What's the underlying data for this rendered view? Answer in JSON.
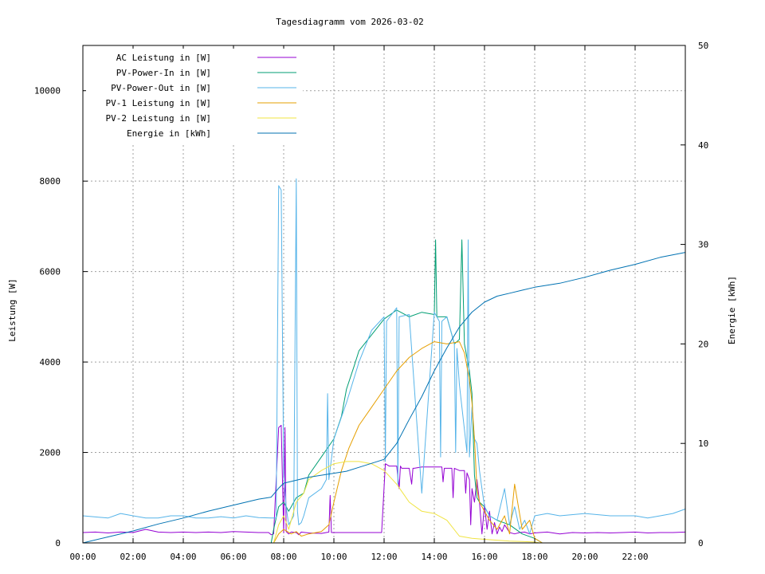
{
  "chart_data": {
    "type": "line",
    "title": "Tagesdiagramm vom 2026-03-02",
    "ylabel": "Leistung [W]",
    "y2label": "Energie [kWh]",
    "xlim": [
      0,
      24
    ],
    "ylim": [
      0,
      11000
    ],
    "y2lim": [
      0,
      50
    ],
    "grid": true,
    "legend_position": "top-left",
    "x_ticks": [
      {
        "v": 0,
        "label": "00:00"
      },
      {
        "v": 2,
        "label": "02:00"
      },
      {
        "v": 4,
        "label": "04:00"
      },
      {
        "v": 6,
        "label": "06:00"
      },
      {
        "v": 8,
        "label": "08:00"
      },
      {
        "v": 10,
        "label": "10:00"
      },
      {
        "v": 12,
        "label": "12:00"
      },
      {
        "v": 14,
        "label": "14:00"
      },
      {
        "v": 16,
        "label": "16:00"
      },
      {
        "v": 18,
        "label": "18:00"
      },
      {
        "v": 20,
        "label": "20:00"
      },
      {
        "v": 22,
        "label": "22:00"
      }
    ],
    "y_ticks": [
      {
        "v": 0,
        "label": "0"
      },
      {
        "v": 2000,
        "label": "2000"
      },
      {
        "v": 4000,
        "label": "4000"
      },
      {
        "v": 6000,
        "label": "6000"
      },
      {
        "v": 8000,
        "label": "8000"
      },
      {
        "v": 10000,
        "label": "10000"
      }
    ],
    "y2_ticks": [
      {
        "v": 0,
        "label": "0"
      },
      {
        "v": 10,
        "label": "10"
      },
      {
        "v": 20,
        "label": "20"
      },
      {
        "v": 30,
        "label": "30"
      },
      {
        "v": 40,
        "label": "40"
      },
      {
        "v": 50,
        "label": "50"
      }
    ],
    "series": [
      {
        "name": "AC Leistung in [W]",
        "color": "#9400d3",
        "axis": "y",
        "x": [
          0,
          0.5,
          1,
          1.5,
          2,
          2.5,
          3,
          3.5,
          4,
          4.5,
          5,
          5.5,
          6,
          6.5,
          7,
          7.4,
          7.5,
          7.6,
          7.8,
          7.9,
          8.0,
          8.05,
          8.1,
          8.2,
          8.3,
          8.5,
          8.6,
          8.7,
          9,
          9.5,
          9.8,
          9.85,
          9.9,
          10,
          11,
          11.9,
          12.05,
          12.2,
          12.5,
          12.6,
          12.65,
          12.7,
          13,
          13.1,
          13.15,
          13.2,
          13.5,
          14,
          14.3,
          14.35,
          14.4,
          14.6,
          14.7,
          14.75,
          14.8,
          15,
          15.2,
          15.25,
          15.3,
          15.4,
          15.45,
          15.5,
          15.6,
          15.7,
          15.8,
          15.9,
          16,
          16.1,
          16.2,
          16.3,
          16.4,
          16.5,
          16.6,
          16.7,
          16.8,
          17,
          17.2,
          17.4,
          17.6,
          17.8,
          18,
          18.2,
          18.5,
          19,
          19.5,
          20,
          20.5,
          21,
          21.5,
          22,
          22.5,
          23,
          23.5,
          24
        ],
        "y": [
          230,
          240,
          220,
          240,
          230,
          300,
          240,
          230,
          240,
          230,
          240,
          230,
          250,
          240,
          230,
          230,
          180,
          200,
          2550,
          2600,
          220,
          2550,
          250,
          200,
          240,
          230,
          180,
          240,
          220,
          210,
          240,
          1050,
          230,
          230,
          230,
          230,
          1750,
          1700,
          1700,
          1200,
          1700,
          1650,
          1650,
          1300,
          1650,
          1650,
          1680,
          1680,
          1680,
          1350,
          1650,
          1650,
          1650,
          1000,
          1650,
          1600,
          1600,
          1100,
          1550,
          1400,
          400,
          1200,
          900,
          1400,
          900,
          200,
          850,
          300,
          700,
          200,
          450,
          200,
          350,
          250,
          400,
          230,
          200,
          230,
          240,
          200,
          220,
          230,
          240,
          200,
          230,
          220,
          230,
          220,
          230,
          240,
          220,
          230,
          230,
          240
        ]
      },
      {
        "name": "PV-Power-In in [W]",
        "color": "#009e73",
        "axis": "y",
        "x": [
          0,
          7.5,
          7.6,
          7.8,
          8.0,
          8.2,
          8.5,
          8.8,
          9.0,
          9.5,
          10.0,
          10.3,
          10.5,
          10.8,
          11.0,
          11.5,
          12.0,
          12.5,
          13.0,
          13.5,
          14.0,
          14.05,
          14.1,
          14.5,
          14.8,
          15.0,
          15.1,
          15.2,
          15.4,
          15.5,
          15.6,
          15.7,
          15.8,
          16.0,
          16.2,
          16.5,
          17.0,
          17.5,
          18.0,
          18.3,
          24
        ],
        "y": [
          0,
          0,
          300,
          800,
          900,
          700,
          1000,
          1100,
          1500,
          1900,
          2300,
          2800,
          3400,
          3900,
          4250,
          4600,
          4950,
          5150,
          5000,
          5100,
          5050,
          6700,
          5000,
          5000,
          4400,
          4500,
          6700,
          4400,
          3800,
          3300,
          1500,
          1000,
          900,
          800,
          600,
          500,
          400,
          200,
          100,
          0,
          0
        ]
      },
      {
        "name": "PV-Power-Out in [W]",
        "color": "#56b4e9",
        "axis": "y",
        "x": [
          0,
          1,
          1.5,
          2,
          2.5,
          3,
          3.5,
          4,
          4.5,
          5,
          5.5,
          6,
          6.5,
          7,
          7.5,
          7.7,
          7.8,
          7.9,
          8.0,
          8.1,
          8.2,
          8.3,
          8.4,
          8.5,
          8.55,
          8.6,
          8.7,
          8.8,
          9,
          9.5,
          9.7,
          9.75,
          9.8,
          10.0,
          10.5,
          11.0,
          11.5,
          12.0,
          12.05,
          12.1,
          12.5,
          12.55,
          12.6,
          13.0,
          13.5,
          14.0,
          14.2,
          14.25,
          14.3,
          14.5,
          14.8,
          14.85,
          14.9,
          15.0,
          15.3,
          15.35,
          15.4,
          15.5,
          15.6,
          15.7,
          15.8,
          15.9,
          16.0,
          16.2,
          16.5,
          16.8,
          17.0,
          17.2,
          17.4,
          17.6,
          17.8,
          18.0,
          18.5,
          19,
          20,
          21,
          22,
          22.5,
          23,
          23.5,
          24
        ],
        "y": [
          600,
          550,
          650,
          600,
          550,
          550,
          600,
          600,
          550,
          550,
          580,
          550,
          600,
          560,
          550,
          550,
          7900,
          7800,
          1500,
          800,
          400,
          500,
          600,
          8050,
          700,
          400,
          450,
          600,
          1000,
          1200,
          1400,
          3300,
          1400,
          2300,
          3100,
          4000,
          4700,
          5000,
          1800,
          4900,
          5200,
          1300,
          5000,
          5050,
          1100,
          5100,
          4900,
          1900,
          4900,
          5000,
          4400,
          2000,
          4300,
          3500,
          2000,
          6700,
          1900,
          3000,
          2300,
          2200,
          1600,
          1200,
          800,
          600,
          500,
          1200,
          400,
          800,
          300,
          500,
          200,
          600,
          650,
          600,
          650,
          600,
          600,
          550,
          600,
          650,
          750
        ]
      },
      {
        "name": "PV-1 Leistung in [W]",
        "color": "#e69f00",
        "axis": "y",
        "x": [
          0,
          7.6,
          7.8,
          8.0,
          8.3,
          8.5,
          8.7,
          9.0,
          9.5,
          9.8,
          10.0,
          10.3,
          10.6,
          11.0,
          11.5,
          12.0,
          12.5,
          13.0,
          13.5,
          14.0,
          14.5,
          15.0,
          15.2,
          15.4,
          15.5,
          15.6,
          15.7,
          15.8,
          16.0,
          16.2,
          16.5,
          16.8,
          17.0,
          17.2,
          17.5,
          17.8,
          18.0,
          18.3,
          24
        ],
        "y": [
          0,
          0,
          200,
          300,
          200,
          250,
          150,
          200,
          250,
          400,
          900,
          1600,
          2100,
          2600,
          3000,
          3400,
          3800,
          4100,
          4300,
          4450,
          4400,
          4450,
          4200,
          3600,
          3100,
          2300,
          1200,
          900,
          700,
          500,
          300,
          600,
          200,
          1300,
          300,
          500,
          100,
          0,
          0
        ]
      },
      {
        "name": "PV-2 Leistung in [W]",
        "color": "#f0e442",
        "axis": "y",
        "x": [
          0,
          7.6,
          7.8,
          8.0,
          8.2,
          8.5,
          8.8,
          9.0,
          9.5,
          10.0,
          10.5,
          11.0,
          11.5,
          12.0,
          12.5,
          13.0,
          13.5,
          14.0,
          14.5,
          15.0,
          15.5,
          16.0,
          16.5,
          17.0,
          17.5,
          18.0,
          18.2,
          24
        ],
        "y": [
          0,
          0,
          400,
          600,
          300,
          900,
          1100,
          1400,
          1600,
          1750,
          1800,
          1800,
          1750,
          1600,
          1300,
          900,
          700,
          650,
          500,
          150,
          100,
          80,
          60,
          40,
          30,
          20,
          0,
          0
        ]
      },
      {
        "name": "Energie in [kWh]",
        "color": "#0072b2",
        "axis": "y2",
        "x": [
          0,
          1,
          2,
          3,
          4,
          5,
          6,
          7,
          7.5,
          7.8,
          8.0,
          8.5,
          9.0,
          9.5,
          10.0,
          10.5,
          11.0,
          11.5,
          12.0,
          12.5,
          13.0,
          13.5,
          14.0,
          14.5,
          15.0,
          15.5,
          16.0,
          16.5,
          17.0,
          17.5,
          18.0,
          18.5,
          19,
          20,
          21,
          22,
          23,
          24
        ],
        "y": [
          0,
          0.6,
          1.2,
          1.9,
          2.5,
          3.2,
          3.8,
          4.4,
          4.6,
          5.5,
          6.0,
          6.3,
          6.6,
          6.8,
          7.0,
          7.2,
          7.6,
          8.0,
          8.4,
          10.0,
          12.4,
          14.7,
          17.3,
          19.6,
          21.7,
          23.2,
          24.2,
          24.8,
          25.1,
          25.4,
          25.7,
          25.9,
          26.1,
          26.7,
          27.4,
          28.0,
          28.7,
          29.2
        ]
      }
    ]
  }
}
